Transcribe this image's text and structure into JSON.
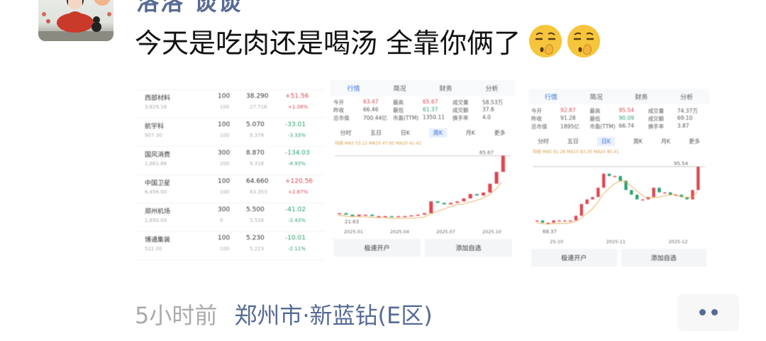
{
  "post": {
    "author": "洛洛 谈谈",
    "text": "今天是吃肉还是喝汤 全靠你俩了",
    "emojis": [
      "smirk-shush-emoji",
      "smirk-shush-emoji"
    ],
    "time": "5小时前",
    "location": "郑州市·新蓝钻(E区)"
  },
  "images": {
    "holdings": [
      {
        "name": "西部材料",
        "sub": "3,829.16",
        "qty": "100",
        "qty2": "100",
        "price": "38.290",
        "cost": "27.718",
        "chg": "+51.56",
        "pct": "+1.38%",
        "up": true
      },
      {
        "name": "航宇科",
        "sub": "907.30",
        "qty": "100",
        "qty2": "100",
        "price": "5.070",
        "cost": "9.378",
        "chg": "-33.01",
        "pct": "-3.33%",
        "up": false
      },
      {
        "name": "国风消费",
        "sub": "2,661.88",
        "qty": "300",
        "qty2": "200",
        "price": "8.870",
        "cost": "9.316",
        "chg": "-134.03",
        "pct": "-4.93%",
        "up": false
      },
      {
        "name": "中国卫星",
        "sub": "6,456.00",
        "qty": "100",
        "qty2": "100",
        "price": "64.660",
        "cost": "63.353",
        "chg": "+120.56",
        "pct": "+2.87%",
        "up": true
      },
      {
        "name": "郑州机场",
        "sub": "1,650.00",
        "qty": "300",
        "qty2": "0",
        "price": "5.500",
        "cost": "5.526",
        "chg": "-41.02",
        "pct": "-2.43%",
        "up": false
      },
      {
        "name": "博通集装",
        "sub": "522.00",
        "qty": "100",
        "qty2": "100",
        "price": "5.230",
        "cost": "5.223",
        "chg": "-10.01",
        "pct": "-2.11%",
        "up": false
      }
    ],
    "tabs": [
      "行情",
      "简况",
      "财务",
      "分析"
    ],
    "periods": [
      "分时",
      "五日",
      "日K",
      "周K",
      "月K",
      "更多"
    ],
    "chart2": {
      "stats": [
        [
          "今开",
          "63.47",
          "最高",
          "65.67",
          "成交量",
          "58.53万"
        ],
        [
          "昨收",
          "66.46",
          "最低",
          "61.37",
          "成交额",
          "37.8"
        ],
        [
          "总市值",
          "700.44亿",
          "市盈(TTM)",
          "1350.11",
          "换手率",
          "4.0"
        ]
      ],
      "ma": "均线 MA5 53.12 MA10 47.92 MA20 41.42",
      "high_label": "65.67",
      "low_label": "21.63",
      "dates": [
        "2025.01",
        "2025.04",
        "2025.07",
        "2025.10"
      ],
      "buttons": [
        "极速开户",
        "添加自选"
      ],
      "closes": [
        24,
        23,
        22,
        23,
        23,
        22,
        22,
        22,
        21.6,
        22,
        22,
        22.5,
        23,
        24,
        32,
        31,
        30,
        31,
        32,
        34,
        37,
        36,
        38,
        44,
        52,
        63
      ]
    },
    "chart3": {
      "stats": [
        [
          "今开",
          "92.87",
          "最高",
          "95.54",
          "成交量",
          "74.37万"
        ],
        [
          "昨收",
          "91.28",
          "最低",
          "90.09",
          "成交额",
          "69.10"
        ],
        [
          "总市值",
          "1895亿",
          "市盈(TTM)",
          "66.74",
          "换手率",
          "3.87"
        ]
      ],
      "ma": "均线 MA5 91.28 MA10 83.35 MA20 85.41",
      "high_label": "95.54",
      "low_label": "68.37",
      "dates": [
        "25-10",
        "2025-11",
        "2025-12"
      ],
      "buttons": [
        "极速开户",
        "添加自选"
      ],
      "closes": [
        70,
        69,
        69,
        70,
        70,
        70,
        70,
        72,
        77,
        79,
        80,
        84,
        90,
        89,
        89,
        87,
        83,
        81,
        79,
        79,
        80,
        84,
        82,
        82,
        81,
        81,
        80,
        79,
        83,
        93
      ]
    }
  }
}
